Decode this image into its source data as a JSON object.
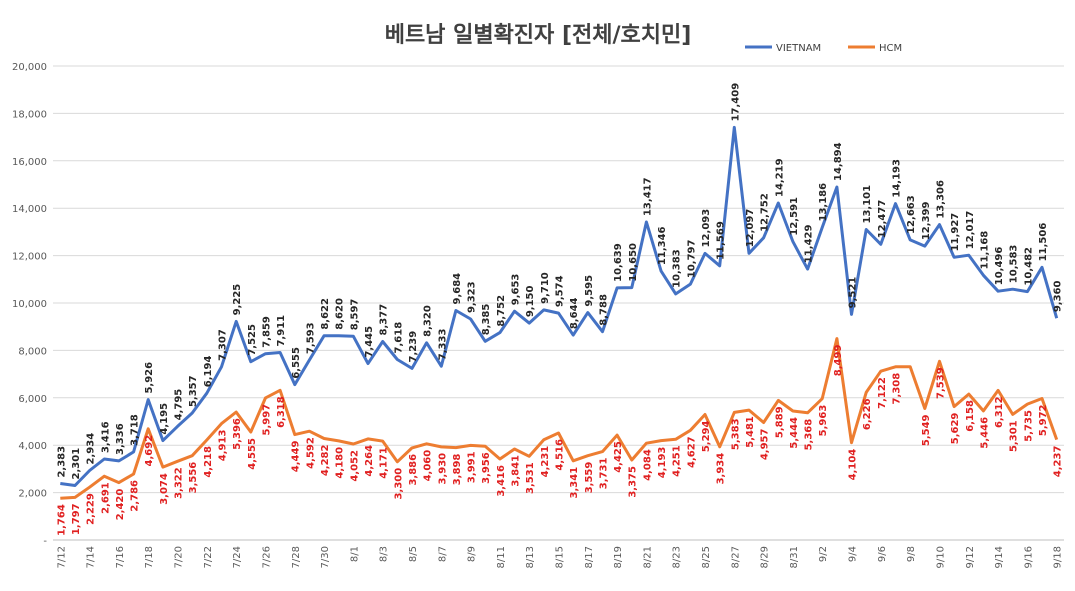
{
  "chart_data": {
    "type": "line",
    "title": "베트남  일별확진자 [전체/호치민]",
    "xlabel": "",
    "ylabel": "",
    "ylim": [
      0,
      20000
    ],
    "yticks": [
      "-",
      "2,000",
      "4,000",
      "6,000",
      "8,000",
      "10,000",
      "12,000",
      "14,000",
      "16,000",
      "18,000",
      "20,000"
    ],
    "grid": true,
    "legend_position": "top-right",
    "colors": {
      "VIETNAM": "#4472C4",
      "HCM": "#ED7D31",
      "vietnam_label": "#262626",
      "hcm_label": "#E02020",
      "grid": "#D9D9D9",
      "axis_text": "#595959"
    },
    "x": [
      "7/12",
      "7/13",
      "7/14",
      "7/15",
      "7/16",
      "7/17",
      "7/18",
      "7/19",
      "7/20",
      "7/21",
      "7/22",
      "7/23",
      "7/24",
      "7/25",
      "7/26",
      "7/27",
      "7/28",
      "7/29",
      "7/30",
      "7/31",
      "8/1",
      "8/2",
      "8/3",
      "8/4",
      "8/5",
      "8/6",
      "8/7",
      "8/8",
      "8/9",
      "8/10",
      "8/11",
      "8/12",
      "8/13",
      "8/14",
      "8/15",
      "8/16",
      "8/17",
      "8/18",
      "8/19",
      "8/20",
      "8/21",
      "8/22",
      "8/23",
      "8/24",
      "8/25",
      "8/26",
      "8/27",
      "8/28",
      "8/29",
      "8/30",
      "8/31",
      "9/1",
      "9/2",
      "9/3",
      "9/4",
      "9/5",
      "9/6",
      "9/7",
      "9/8",
      "9/9",
      "9/10",
      "9/11",
      "9/12",
      "9/13",
      "9/14",
      "9/15",
      "9/16",
      "9/17",
      "9/18"
    ],
    "x_tick_labels": [
      "7/12",
      "7/14",
      "7/16",
      "7/18",
      "7/20",
      "7/22",
      "7/24",
      "7/26",
      "7/28",
      "7/30",
      "8/1",
      "8/3",
      "8/5",
      "8/7",
      "8/9",
      "8/11",
      "8/13",
      "8/15",
      "8/17",
      "8/19",
      "8/21",
      "8/23",
      "8/25",
      "8/27",
      "8/29",
      "8/31",
      "9/2",
      "9/4",
      "9/6",
      "9/8",
      "9/10",
      "9/12",
      "9/14",
      "9/16",
      "9/18"
    ],
    "series": [
      {
        "name": "VIETNAM",
        "values": [
          2383,
          2301,
          2934,
          3416,
          3336,
          3718,
          5926,
          4195,
          4795,
          5357,
          6194,
          7307,
          9225,
          7525,
          7859,
          7911,
          6555,
          7593,
          8622,
          8620,
          8597,
          7445,
          8377,
          7618,
          7239,
          8320,
          7333,
          9684,
          9323,
          8385,
          8752,
          9653,
          9150,
          9710,
          9574,
          8644,
          9595,
          8788,
          10639,
          10650,
          13417,
          11346,
          10383,
          10797,
          12093,
          11569,
          17409,
          12097,
          12752,
          14219,
          12591,
          11429,
          13186,
          14894,
          9521,
          13101,
          12477,
          14193,
          12663,
          12399,
          13306,
          11927,
          12017,
          11168,
          10496,
          10583,
          10482,
          11506,
          9360
        ],
        "labels": [
          "2,383",
          "2,301",
          "2,934",
          "3,416",
          "3,336",
          "3,718",
          "5,926",
          "4,195",
          "4,795",
          "5,357",
          "6,194",
          "7,307",
          "9,225",
          "7,525",
          "7,859",
          "7,911",
          "6,555",
          "7,593",
          "8,622",
          "8,620",
          "8,597",
          "7,445",
          "8,377",
          "7,618",
          "7,239",
          "8,320",
          "7,333",
          "9,684",
          "9,323",
          "8,385",
          "8,752",
          "9,653",
          "9,150",
          "9,710",
          "9,574",
          "8,644",
          "9,595",
          "8,788",
          "10,639",
          "10,650",
          "13,417",
          "11,346",
          "10,383",
          "10,797",
          "12,093",
          "11,569",
          "17,409",
          "12,097",
          "12,752",
          "14,219",
          "12,591",
          "11,429",
          "13,186",
          "14,894",
          "9,521",
          "13,101",
          "12,477",
          "14,193",
          "12,663",
          "12,399",
          "13,306",
          "11,927",
          "12,017",
          "11,168",
          "10,496",
          "10,583",
          "10,482",
          "11,506",
          "9,360"
        ]
      },
      {
        "name": "HCM",
        "values": [
          1764,
          1797,
          2229,
          2691,
          2420,
          2786,
          4692,
          3074,
          3322,
          3556,
          4218,
          4913,
          5396,
          4555,
          5997,
          6318,
          4449,
          4592,
          4282,
          4180,
          4052,
          4264,
          4171,
          3300,
          3886,
          4060,
          3930,
          3898,
          3991,
          3956,
          3416,
          3841,
          3531,
          4231,
          4516,
          3341,
          3559,
          3731,
          4425,
          3375,
          4084,
          4193,
          4251,
          4627,
          5294,
          3934,
          5383,
          5481,
          4957,
          5889,
          5444,
          5368,
          5963,
          8499,
          4104,
          6226,
          7122,
          7308,
          7308,
          5549,
          7539,
          5629,
          6158,
          5446,
          6312,
          5301,
          5735,
          5972,
          4237
        ],
        "labels": [
          "1,764",
          "1,797",
          "2,229",
          "2,691",
          "2,420",
          "2,786",
          "4,692",
          "3,074",
          "3,322",
          "3,556",
          "4,218",
          "4,913",
          "5,396",
          "4,555",
          "5,997",
          "6,318",
          "4,449",
          "4,592",
          "4,282",
          "4,180",
          "4,052",
          "4,264",
          "4,171",
          "3,300",
          "3,886",
          "4,060",
          "3,930",
          "3,898",
          "3,991",
          "3,956",
          "3,416",
          "3,841",
          "3,531",
          "4,231",
          "4,516",
          "3,341",
          "3,559",
          "3,731",
          "4,425",
          "3,375",
          "4,084",
          "4,193",
          "4,251",
          "4,627",
          "5,294",
          "3,934",
          "5,383",
          "5,481",
          "4,957",
          "5,889",
          "5,444",
          "5,368",
          "5,963",
          "8,499",
          "4,104",
          "6,226",
          "7,122",
          "7,308",
          "",
          "5,549",
          "7,539",
          "5,629",
          "6,158",
          "5,446",
          "6,312",
          "5,301",
          "5,735",
          "5,972",
          "4,237"
        ]
      }
    ]
  }
}
